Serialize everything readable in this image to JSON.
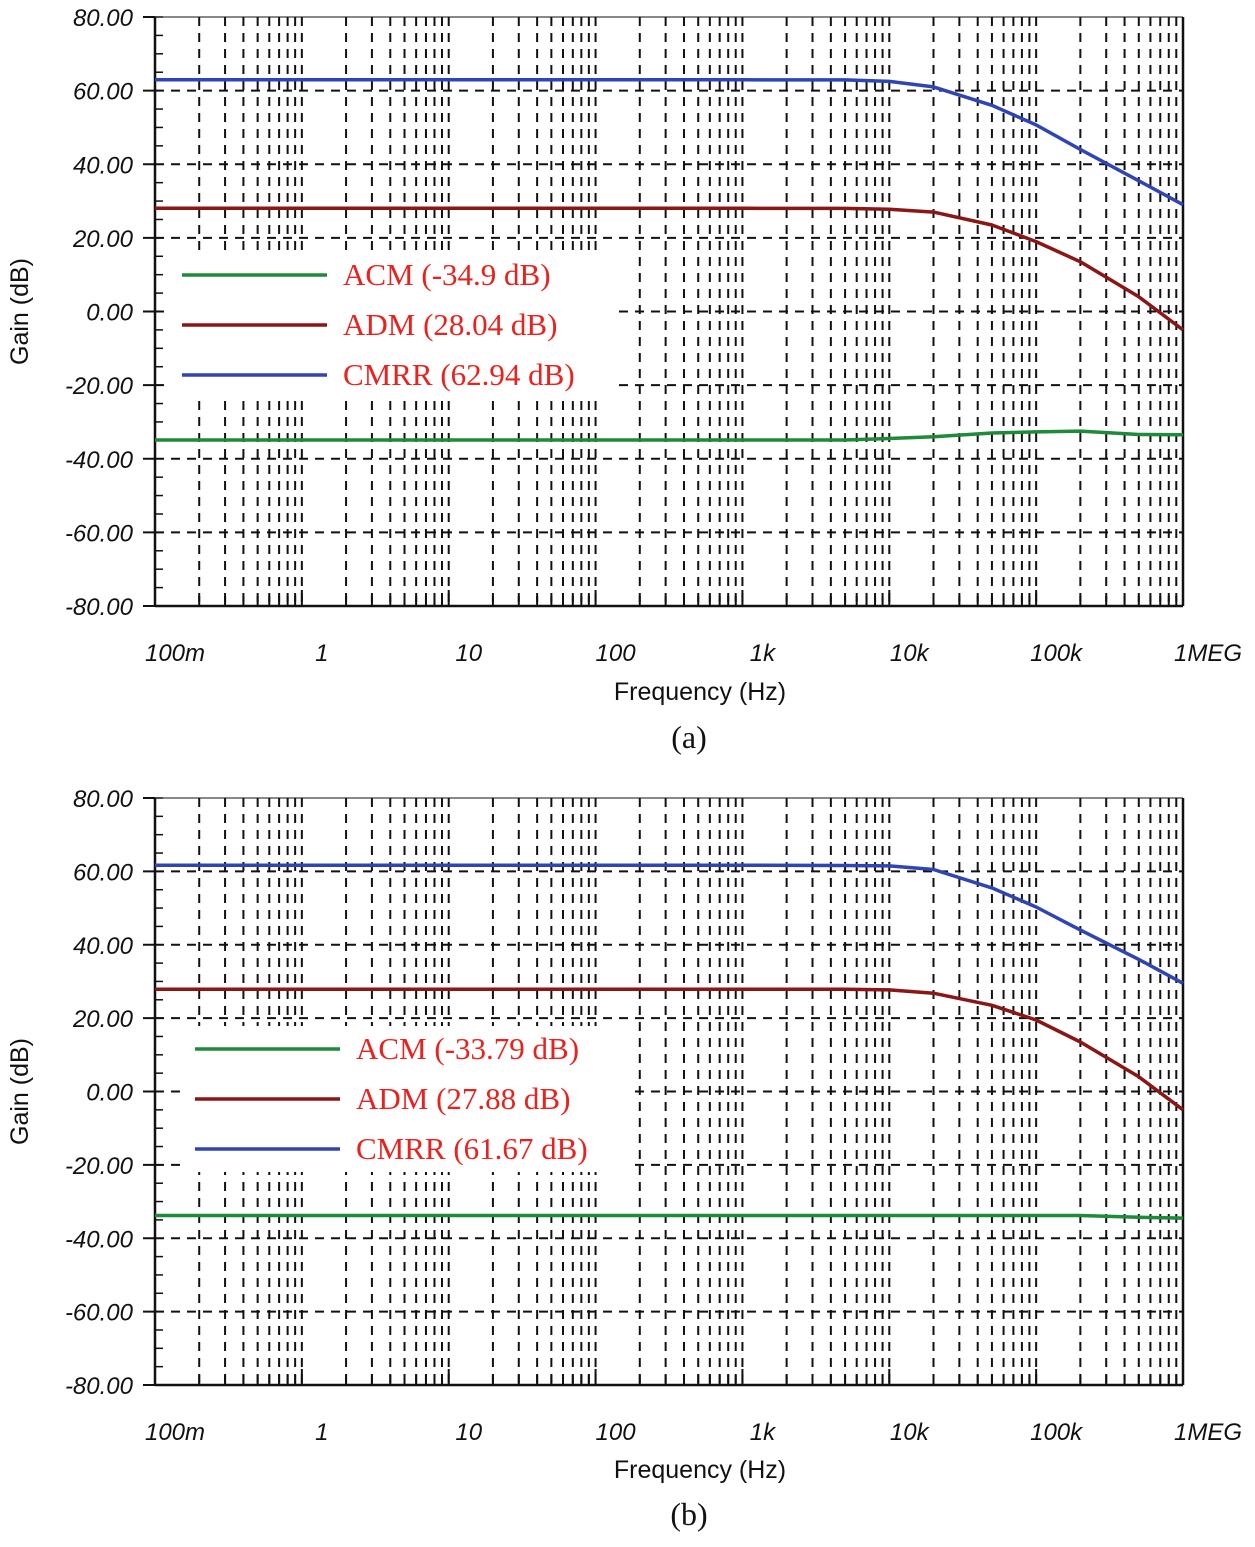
{
  "chart_data": [
    {
      "type": "line",
      "caption": "(a)",
      "xlabel": "Frequency (Hz)",
      "ylabel": "Gain (dB)",
      "xscale": "log",
      "xlim": [
        0.1,
        1000000
      ],
      "ylim": [
        -80,
        80
      ],
      "xticks": [
        {
          "v": 0.1,
          "label": "100m"
        },
        {
          "v": 1,
          "label": "1"
        },
        {
          "v": 10,
          "label": "10"
        },
        {
          "v": 100,
          "label": "100"
        },
        {
          "v": 1000,
          "label": "1k"
        },
        {
          "v": 10000,
          "label": "10k"
        },
        {
          "v": 100000,
          "label": "100k"
        },
        {
          "v": 1000000,
          "label": "1MEG"
        }
      ],
      "yticks": [
        {
          "v": 80,
          "label": "80.00"
        },
        {
          "v": 60,
          "label": "60.00"
        },
        {
          "v": 40,
          "label": "40.00"
        },
        {
          "v": 20,
          "label": "20.00"
        },
        {
          "v": 0,
          "label": "0.00"
        },
        {
          "v": -20,
          "label": "-20.00"
        },
        {
          "v": -40,
          "label": "-40.00"
        },
        {
          "v": -60,
          "label": "-60.00"
        },
        {
          "v": -80,
          "label": "-80.00"
        }
      ],
      "grid": true,
      "legend_position": "center-left",
      "x": [
        0.1,
        1,
        10,
        100,
        1000,
        5000,
        10000,
        20000,
        50000,
        100000,
        200000,
        500000,
        1000000
      ],
      "series": [
        {
          "name": "ACM (-34.9 dB)",
          "color": "#1e8a3a",
          "values": [
            -34.9,
            -34.9,
            -34.9,
            -34.9,
            -34.9,
            -34.9,
            -34.5,
            -34.0,
            -33.0,
            -32.7,
            -32.5,
            -33.4,
            -33.5
          ]
        },
        {
          "name": "ADM (28.04 dB)",
          "color": "#8a1616",
          "values": [
            28.04,
            28.04,
            28.04,
            28.04,
            28.04,
            28.0,
            27.8,
            27.0,
            23.5,
            19.0,
            13.5,
            4.0,
            -5.0
          ]
        },
        {
          "name": "CMRR (62.94 dB)",
          "color": "#2f45b5",
          "values": [
            62.94,
            62.94,
            62.94,
            62.94,
            62.94,
            62.9,
            62.5,
            61.0,
            56.0,
            50.7,
            44.0,
            35.5,
            29.0
          ]
        }
      ]
    },
    {
      "type": "line",
      "caption": "(b)",
      "xlabel": "Frequency (Hz)",
      "ylabel": "Gain (dB)",
      "xscale": "log",
      "xlim": [
        0.1,
        1000000
      ],
      "ylim": [
        -80,
        80
      ],
      "xticks": [
        {
          "v": 0.1,
          "label": "100m"
        },
        {
          "v": 1,
          "label": "1"
        },
        {
          "v": 10,
          "label": "10"
        },
        {
          "v": 100,
          "label": "100"
        },
        {
          "v": 1000,
          "label": "1k"
        },
        {
          "v": 10000,
          "label": "10k"
        },
        {
          "v": 100000,
          "label": "100k"
        },
        {
          "v": 1000000,
          "label": "1MEG"
        }
      ],
      "yticks": [
        {
          "v": 80,
          "label": "80.00"
        },
        {
          "v": 60,
          "label": "60.00"
        },
        {
          "v": 40,
          "label": "40.00"
        },
        {
          "v": 20,
          "label": "20.00"
        },
        {
          "v": 0,
          "label": "0.00"
        },
        {
          "v": -20,
          "label": "-20.00"
        },
        {
          "v": -40,
          "label": "-40.00"
        },
        {
          "v": -60,
          "label": "-60.00"
        },
        {
          "v": -80,
          "label": "-80.00"
        }
      ],
      "grid": true,
      "legend_position": "center-left",
      "x": [
        0.1,
        1,
        10,
        100,
        1000,
        5000,
        10000,
        20000,
        50000,
        100000,
        200000,
        500000,
        1000000
      ],
      "series": [
        {
          "name": "ACM (-33.79 dB)",
          "color": "#1e8a3a",
          "values": [
            -33.79,
            -33.79,
            -33.79,
            -33.79,
            -33.79,
            -33.79,
            -33.79,
            -33.79,
            -33.79,
            -33.79,
            -33.79,
            -34.3,
            -34.5
          ]
        },
        {
          "name": "ADM (27.88 dB)",
          "color": "#8a1616",
          "values": [
            27.88,
            27.88,
            27.88,
            27.88,
            27.88,
            27.85,
            27.7,
            26.8,
            23.5,
            19.5,
            13.5,
            4.0,
            -5.0
          ]
        },
        {
          "name": "CMRR (61.67 dB)",
          "color": "#2f45b5",
          "values": [
            61.67,
            61.67,
            61.67,
            61.67,
            61.67,
            61.6,
            61.5,
            60.5,
            55.5,
            50.3,
            44.0,
            36.0,
            29.5
          ]
        }
      ]
    }
  ]
}
